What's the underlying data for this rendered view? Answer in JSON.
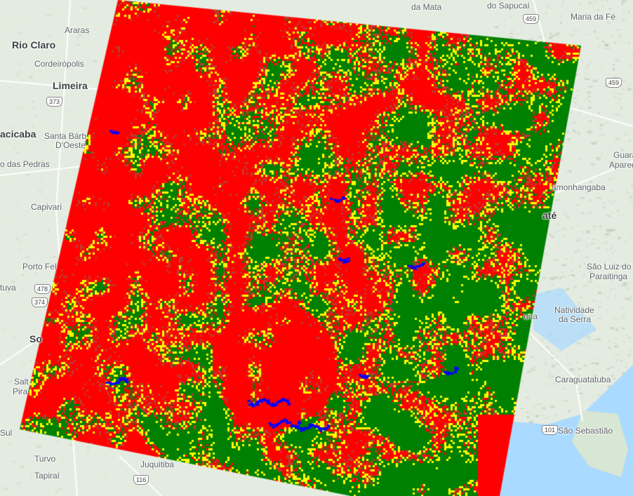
{
  "map": {
    "labels": [
      {
        "text": "Araras"
      },
      {
        "text": "Rio Claro"
      },
      {
        "text": "Cordeirópolis"
      },
      {
        "text": "Limeira"
      },
      {
        "text": "acicaba"
      },
      {
        "text": "Santa Bárb"
      },
      {
        "text": "D'Oeste"
      },
      {
        "text": "o das Pedras"
      },
      {
        "text": "Capivari"
      },
      {
        "text": "Porto Fel"
      },
      {
        "text": "tuva"
      },
      {
        "text": "So"
      },
      {
        "text": "Salt"
      },
      {
        "text": "Pira"
      },
      {
        "text": "Sul"
      },
      {
        "text": "Turvo"
      },
      {
        "text": "Tapiraí"
      },
      {
        "text": "Juquitiba"
      },
      {
        "text": "do Sapucaí"
      },
      {
        "text": "Maria da Fé"
      },
      {
        "text": "da Mata"
      },
      {
        "text": "Guara"
      },
      {
        "text": "Apared"
      },
      {
        "text": "amonhangaba"
      },
      {
        "text": "até"
      },
      {
        "text": "São Luiz do"
      },
      {
        "text": "Paraitinga"
      },
      {
        "text": "Natividade"
      },
      {
        "text": "da Serra"
      },
      {
        "text": "una"
      },
      {
        "text": "Caraguatatuba"
      },
      {
        "text": "São Sebastião"
      }
    ],
    "road_shields": [
      "373",
      "478",
      "374",
      "116",
      "459",
      "459",
      "101"
    ],
    "colors": {
      "land": "#e4ece1",
      "water": "#aadaff",
      "road": "#ffffff"
    }
  },
  "overlay": {
    "type": "land-cover classification raster",
    "class_colors": [
      "#ff0000",
      "#008000",
      "#ffff00",
      "#0000ff",
      "#c0392b"
    ]
  }
}
